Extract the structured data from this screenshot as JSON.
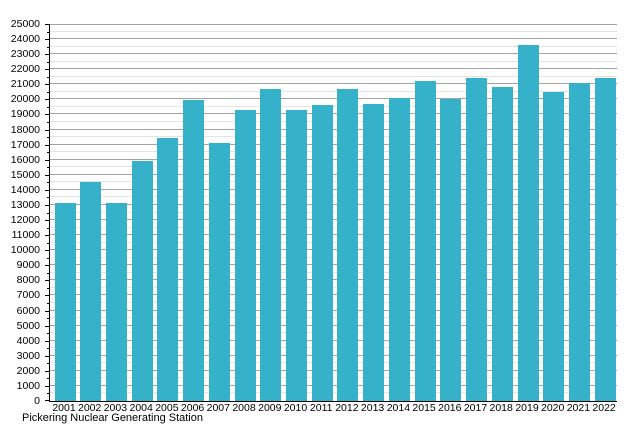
{
  "chart_data": {
    "type": "bar",
    "caption": "Pickering Nuclear Generating Station",
    "categories": [
      "2001",
      "2002",
      "2003",
      "2004",
      "2005",
      "2006",
      "2007",
      "2008",
      "2009",
      "2010",
      "2011",
      "2012",
      "2013",
      "2014",
      "2015",
      "2016",
      "2017",
      "2018",
      "2019",
      "2020",
      "2021",
      "2022"
    ],
    "values": [
      13150,
      14550,
      13150,
      15900,
      17450,
      19950,
      17100,
      19300,
      20700,
      19300,
      19600,
      20700,
      19700,
      20100,
      21250,
      20000,
      21450,
      20850,
      23600,
      20500,
      21100,
      21400
    ],
    "title": "",
    "xlabel": "",
    "ylabel": "",
    "ylim": [
      0,
      25000
    ],
    "ytick_step": 1000,
    "minor_tick_step": 500,
    "yticks": [
      0,
      1000,
      2000,
      3000,
      4000,
      5000,
      6000,
      7000,
      8000,
      9000,
      10000,
      11000,
      12000,
      13000,
      14000,
      15000,
      16000,
      17000,
      18000,
      19000,
      20000,
      21000,
      22000,
      23000,
      24000,
      25000
    ],
    "grid": "major-and-minor",
    "legend": "none",
    "bar_color": "#35b2c9",
    "major_grid_color": "#a3a3a3",
    "minor_grid_color": "#e4e4e4",
    "axis_color": "#000000",
    "text_color": "#000000"
  }
}
